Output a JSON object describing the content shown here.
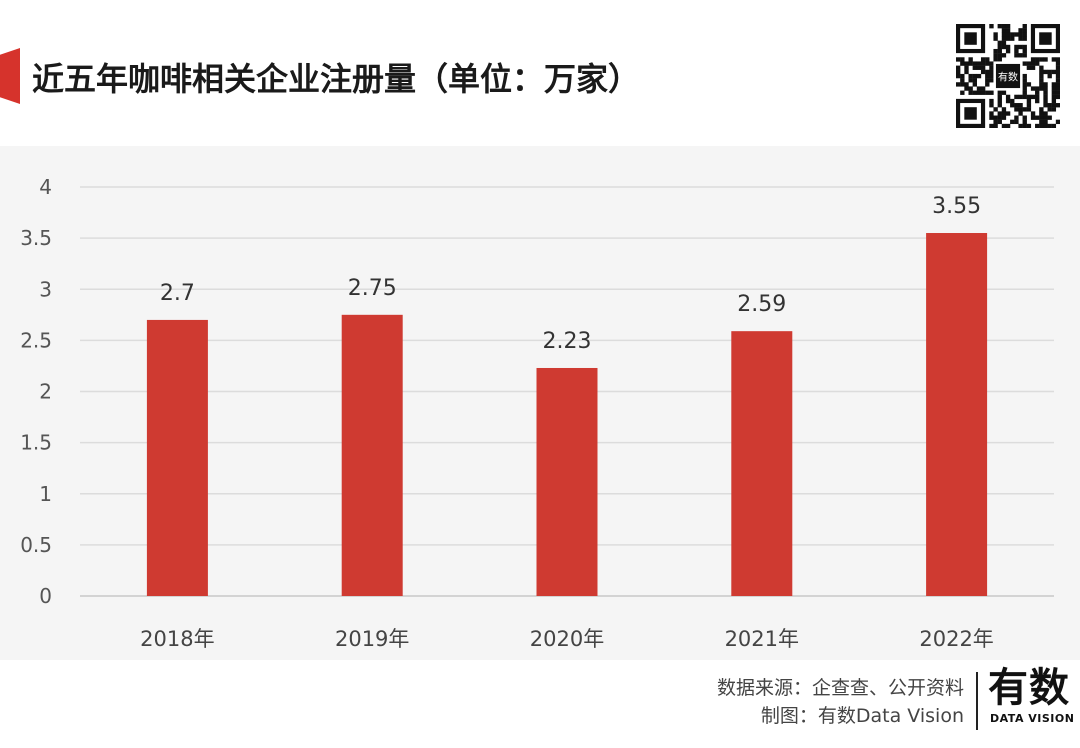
{
  "header": {
    "title": "近五年咖啡相关企业注册量（单位：万家）",
    "accent_color": "#d6332c",
    "qr_center_label": "有数"
  },
  "chart_data": {
    "type": "bar",
    "title": "近五年咖啡相关企业注册量（单位：万家）",
    "categories": [
      "2018年",
      "2019年",
      "2020年",
      "2021年",
      "2022年"
    ],
    "values": [
      2.7,
      2.75,
      2.23,
      2.59,
      3.55
    ],
    "data_labels": [
      "2.7",
      "2.75",
      "2.23",
      "2.59",
      "3.55"
    ],
    "yticks": [
      "0",
      "0.5",
      "1",
      "1.5",
      "2",
      "2.5",
      "3",
      "3.5",
      "4"
    ],
    "ylim": [
      0,
      4
    ],
    "grid": true,
    "bar_color": "#cf3a31"
  },
  "footer": {
    "source_line1": "数据来源：企查查、公开资料",
    "source_line2": "制图：有数Data Vision",
    "logo_text": "有数",
    "logo_subtext": "DATA VISION"
  }
}
